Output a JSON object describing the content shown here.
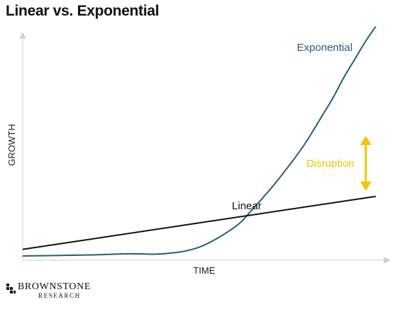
{
  "page": {
    "title": "Linear vs. Exponential"
  },
  "brand": {
    "name": "BROWNSTONE",
    "sub": "RESEARCH"
  },
  "chart_data": {
    "type": "line",
    "title": "Linear vs. Exponential",
    "xlabel": "TIME",
    "ylabel": "GROWTH",
    "xlim": [
      0,
      100
    ],
    "ylim": [
      0,
      100
    ],
    "grid": false,
    "legend": "none",
    "series": [
      {
        "name": "Exponential",
        "color": "#1f5f7a",
        "x": [
          0,
          20,
          30,
          40,
          50,
          60,
          65,
          70,
          75,
          80,
          85,
          88,
          91,
          94,
          97,
          100
        ],
        "y": [
          0,
          0.5,
          1,
          1,
          4,
          13,
          21,
          30,
          40,
          51,
          64,
          72,
          81,
          89,
          97,
          104
        ]
      },
      {
        "name": "Linear",
        "color": "#111111",
        "x": [
          0,
          100
        ],
        "y": [
          3,
          27
        ]
      }
    ],
    "annotations": [
      {
        "text": "Disruption",
        "color": "#f2c500",
        "x": 100,
        "y_from": 27,
        "y_to": 57
      }
    ]
  }
}
